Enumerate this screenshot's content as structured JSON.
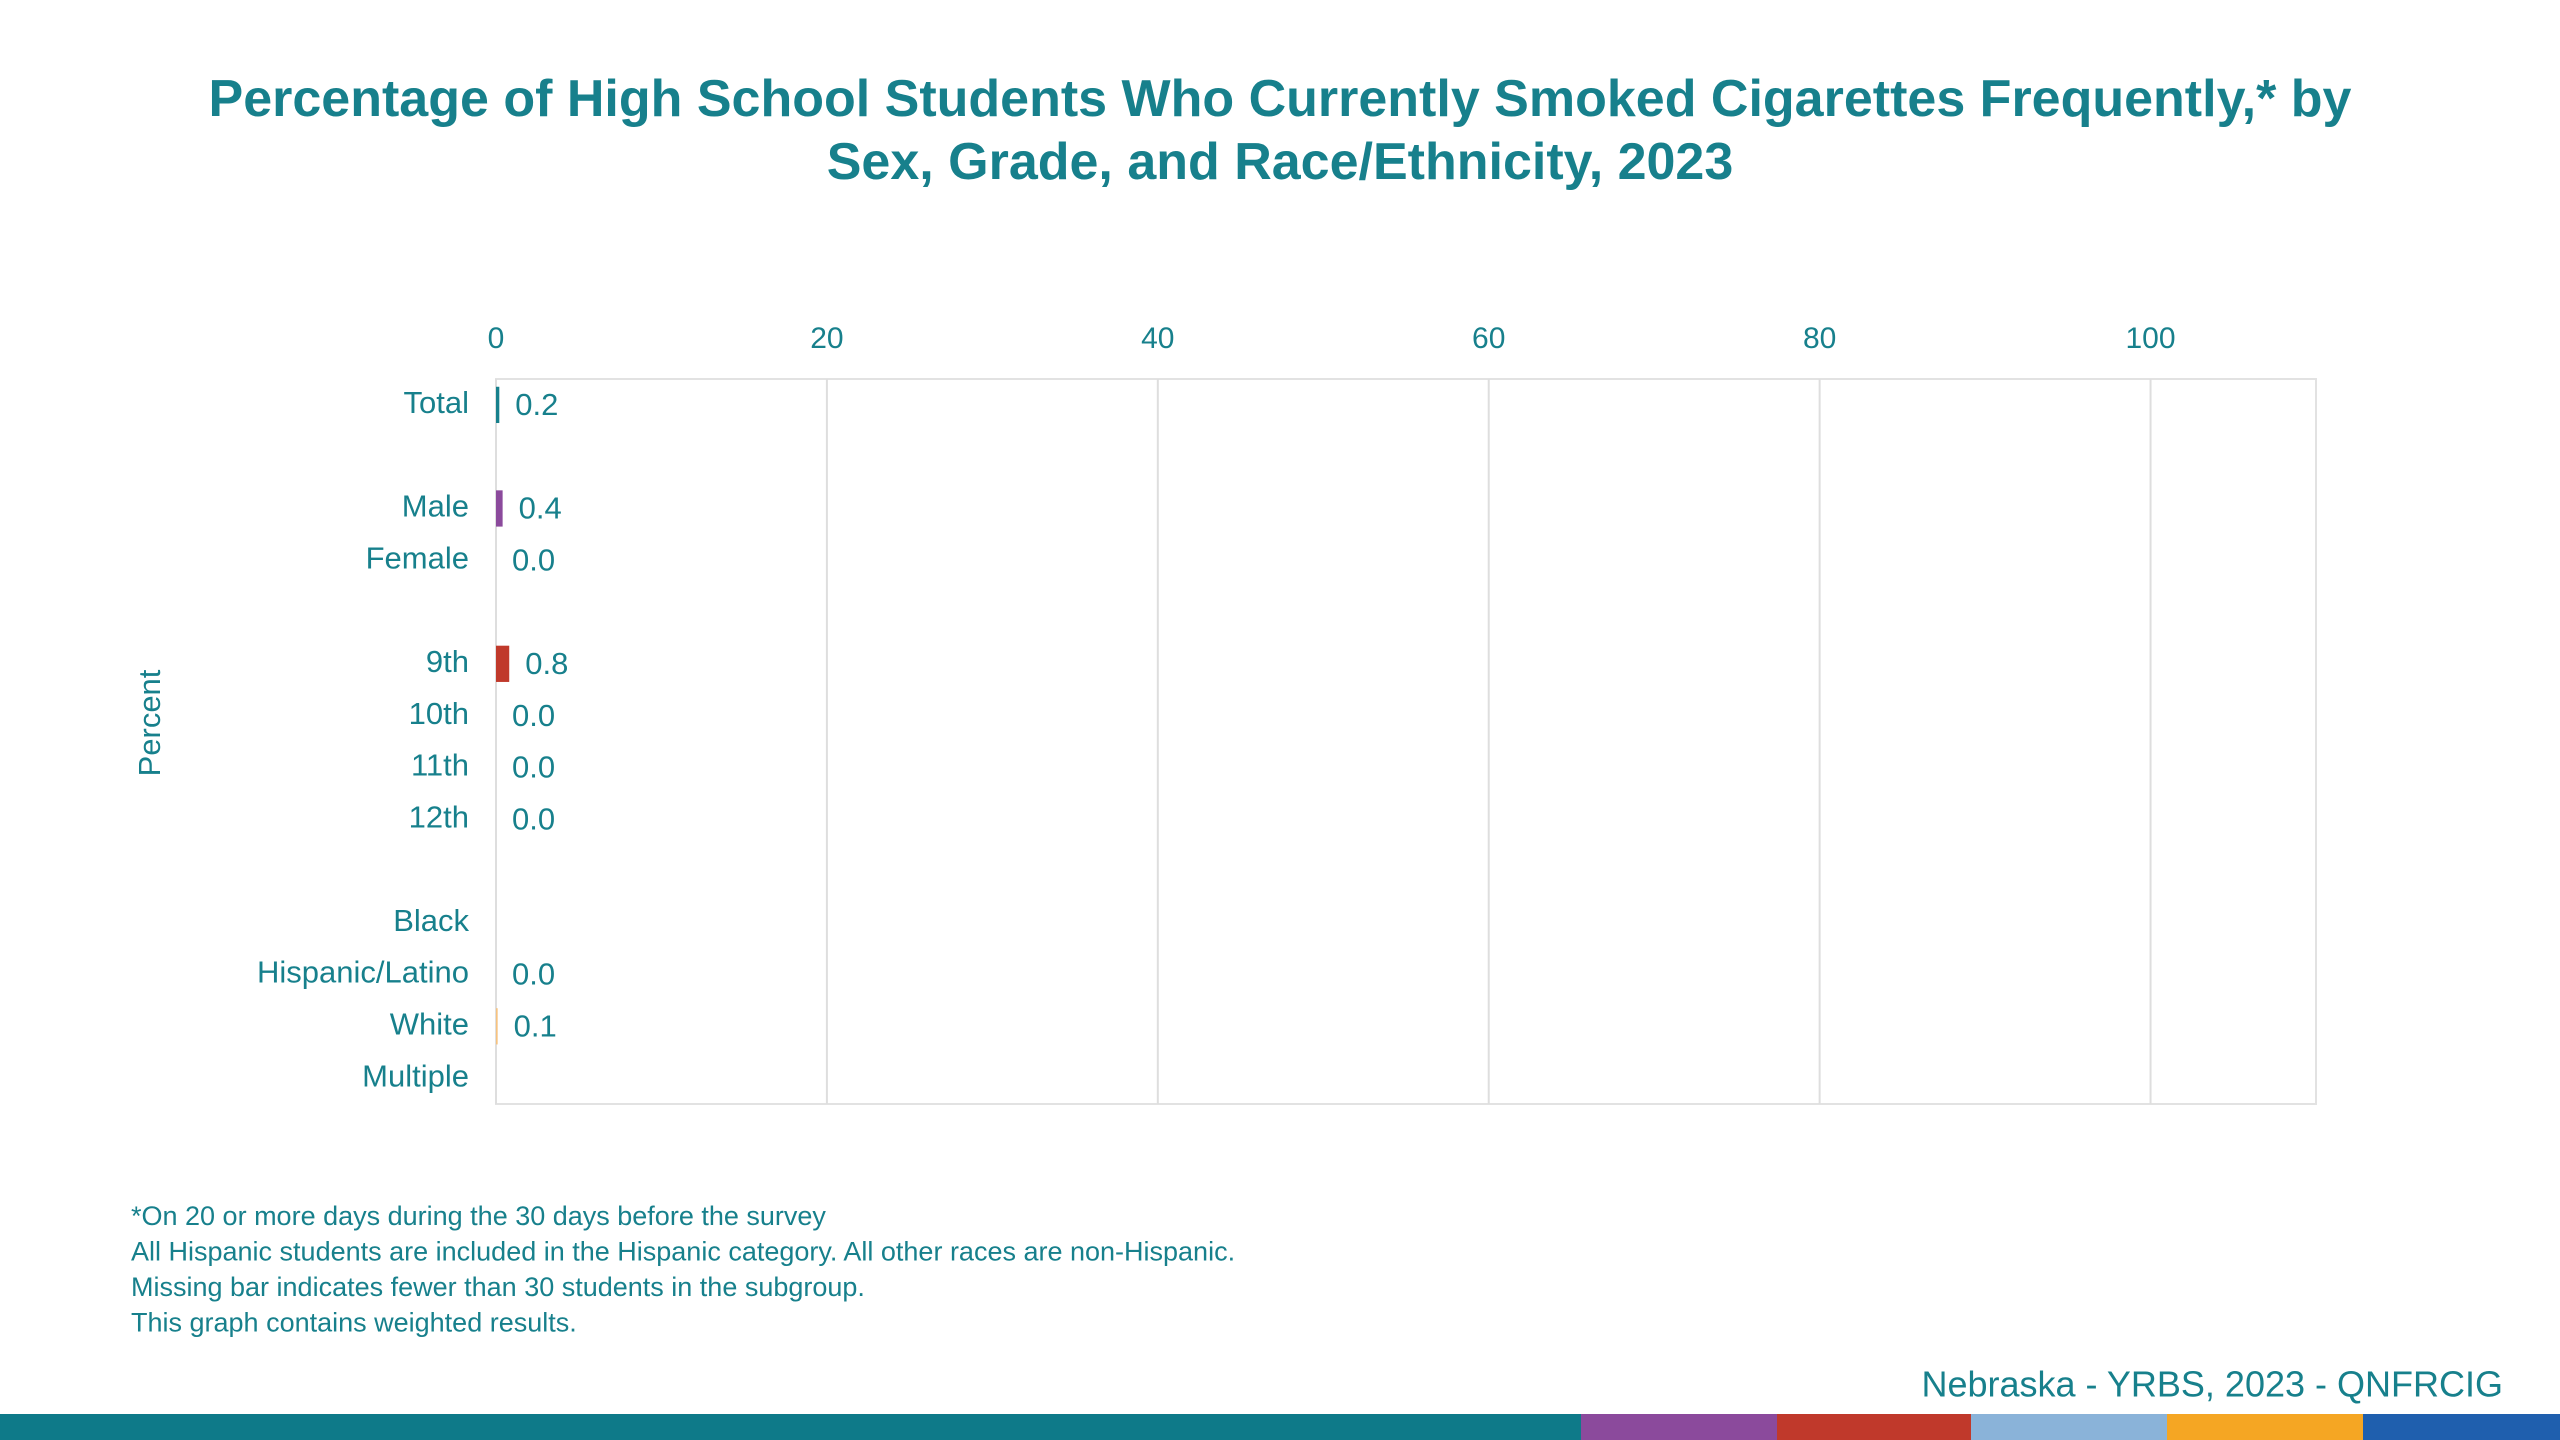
{
  "chart_data": {
    "type": "hbar",
    "title": "Percentage of High School Students Who Currently Smoked Cigarettes Frequently,* by Sex, Grade, and Race/Ethnicity, 2023",
    "ylabel": "Percent",
    "categories": [
      "Total",
      null,
      "Male",
      "Female",
      null,
      "9th",
      "10th",
      "11th",
      "12th",
      null,
      "Black",
      "Hispanic/Latino",
      "White",
      "Multiple"
    ],
    "values": [
      0.2,
      null,
      0.4,
      0.0,
      null,
      0.8,
      0.0,
      0.0,
      0.0,
      null,
      null,
      0.0,
      0.1,
      null
    ],
    "value_labels": [
      "0.2",
      null,
      "0.4",
      "0.0",
      null,
      "0.8",
      "0.0",
      "0.0",
      "0.0",
      null,
      null,
      "0.0",
      "0.1",
      null
    ],
    "colors": [
      "#17808c",
      null,
      "#8b4a9c",
      "#8b4a9c",
      null,
      "#c0392b",
      "#c0392b",
      "#c0392b",
      "#c0392b",
      null,
      "#8ab3d9",
      "#8ab3d9",
      "#f6c27f",
      "#1f5fae"
    ],
    "xlim": [
      0,
      110
    ],
    "xticks": [
      0,
      20,
      40,
      60,
      80,
      100
    ],
    "grid": true,
    "footnotes": [
      "*On 20 or more days during the 30 days before the survey",
      "All Hispanic students are included in the Hispanic category.  All other races are non-Hispanic.",
      "Missing bar indicates fewer than 30 students in the subgroup.",
      "This graph contains weighted results."
    ],
    "source": "Nebraska - YRBS, 2023 - QNFRCIG"
  }
}
